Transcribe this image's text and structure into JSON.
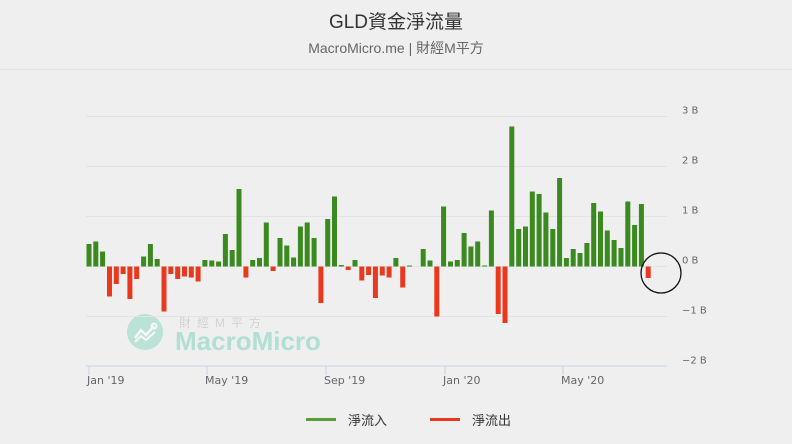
{
  "header": {
    "title": "GLD資金淨流量",
    "subtitle": "MacroMicro.me | 財經M平方"
  },
  "watermark": {
    "cn": "財經M平方",
    "en": "MacroMicro"
  },
  "legend": {
    "items": [
      {
        "label": "淨流入",
        "color": "#5a9e3a"
      },
      {
        "label": "淨流出",
        "color": "#e8391f"
      }
    ]
  },
  "colors": {
    "inflow": "#3a8a1f",
    "outflow": "#e8391f",
    "background": "#efefef",
    "gridline": "#e3e3e3",
    "axis": "#c8d4e6"
  },
  "chart_data": {
    "type": "bar",
    "title": "GLD資金淨流量",
    "subtitle": "MacroMicro.me | 財經M平方",
    "xlabel": "",
    "ylabel": "",
    "ylim": [
      -2,
      3
    ],
    "y_unit": "B",
    "yticks": [
      "3 B",
      "2 B",
      "1 B",
      "0 B",
      "−1 B",
      "−2 B"
    ],
    "ytick_values": [
      3,
      2,
      1,
      0,
      -1,
      -2
    ],
    "xticks": [
      "Jan '19",
      "May '19",
      "Sep '19",
      "Jan '20",
      "May '20"
    ],
    "grid": true,
    "legend_position": "bottom",
    "frequency": "weekly",
    "series": [
      {
        "name": "淨流入",
        "color": "#3a8a1f",
        "note": "positive values"
      },
      {
        "name": "淨流出",
        "color": "#e8391f",
        "note": "negative values"
      }
    ],
    "values": [
      0.45,
      0.5,
      0.3,
      -0.6,
      -0.35,
      -0.15,
      -0.65,
      -0.25,
      0.2,
      0.45,
      0.15,
      -0.9,
      -0.15,
      -0.25,
      -0.2,
      -0.22,
      -0.3,
      0.13,
      0.12,
      0.1,
      0.65,
      0.33,
      1.55,
      -0.22,
      0.13,
      0.17,
      0.88,
      -0.09,
      0.57,
      0.42,
      0.18,
      0.8,
      0.88,
      0.57,
      -0.73,
      0.95,
      1.4,
      0.03,
      -0.07,
      0.13,
      -0.28,
      -0.17,
      -0.63,
      -0.18,
      -0.22,
      0.17,
      -0.42,
      0.02,
      0.0,
      0.35,
      0.12,
      -1.0,
      1.2,
      0.1,
      0.13,
      0.67,
      0.4,
      0.5,
      0.02,
      1.12,
      -0.95,
      -1.13,
      2.8,
      0.75,
      0.8,
      1.5,
      1.45,
      1.08,
      0.75,
      1.77,
      0.17,
      0.35,
      0.27,
      0.47,
      1.27,
      1.1,
      0.72,
      0.53,
      0.37,
      1.3,
      0.83,
      1.25,
      -0.23
    ],
    "annotation": "circle highlighting latest outflow bar"
  }
}
